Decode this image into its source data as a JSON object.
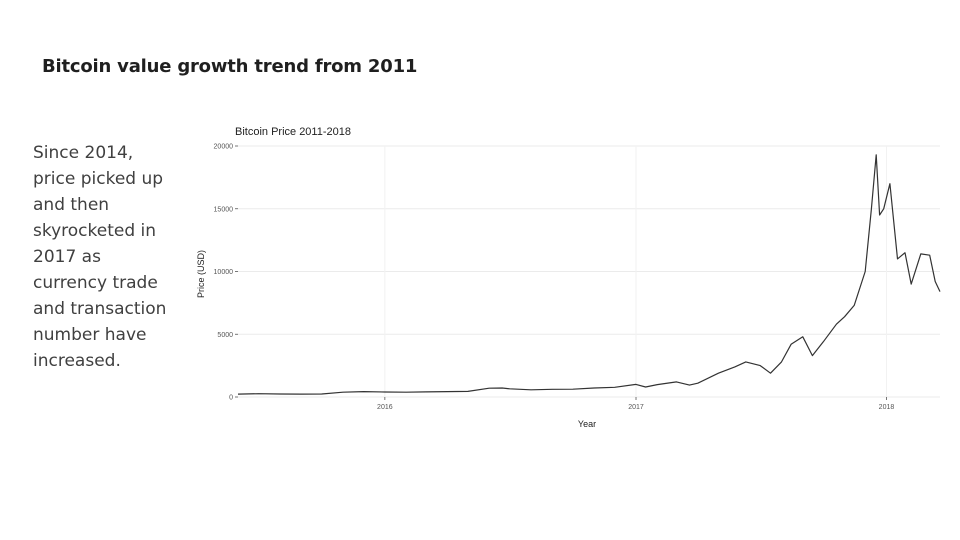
{
  "slide": {
    "title": "Bitcoin value growth trend from 2011",
    "body": "Since 2014, price picked up and then skyrocketed in 2017 as currency trade and transaction number have increased."
  },
  "chart_data": {
    "type": "line",
    "title": "Bitcoin Price 2011-2018",
    "xlabel": "Year",
    "ylabel": "Price (USD)",
    "x_ticks": [
      "2016",
      "2017",
      "2018"
    ],
    "y_ticks": [
      "0",
      "5000",
      "10000",
      "15000",
      "20000"
    ],
    "xlim": [
      "2015-06-01",
      "2018-03-20"
    ],
    "ylim": [
      0,
      20000
    ],
    "grid": true,
    "line_color": "#333333",
    "series": [
      {
        "x": [
          "2015-06-01",
          "2015-07-01",
          "2015-08-01",
          "2015-09-01",
          "2015-10-01",
          "2015-11-01",
          "2015-12-01",
          "2016-01-01",
          "2016-02-01",
          "2016-03-01",
          "2016-04-01",
          "2016-05-01",
          "2016-06-01",
          "2016-06-20",
          "2016-07-01",
          "2016-08-01",
          "2016-09-01",
          "2016-10-01",
          "2016-11-01",
          "2016-12-01",
          "2017-01-01",
          "2017-01-15",
          "2017-02-01",
          "2017-03-01",
          "2017-03-20",
          "2017-04-01",
          "2017-05-01",
          "2017-05-25",
          "2017-06-10",
          "2017-07-01",
          "2017-07-16",
          "2017-08-01",
          "2017-08-15",
          "2017-09-01",
          "2017-09-15",
          "2017-10-01",
          "2017-10-20",
          "2017-11-01",
          "2017-11-15",
          "2017-12-01",
          "2017-12-10",
          "2017-12-17",
          "2017-12-22",
          "2017-12-28",
          "2018-01-06",
          "2018-01-17",
          "2018-01-28",
          "2018-02-06",
          "2018-02-20",
          "2018-03-05",
          "2018-03-13",
          "2018-03-20"
        ],
        "y": [
          230,
          260,
          240,
          230,
          240,
          380,
          430,
          400,
          380,
          410,
          430,
          450,
          700,
          720,
          650,
          570,
          610,
          620,
          720,
          770,
          1000,
          800,
          990,
          1200,
          950,
          1100,
          1900,
          2400,
          2800,
          2500,
          1900,
          2800,
          4200,
          4800,
          3300,
          4400,
          5800,
          6400,
          7300,
          10000,
          15000,
          19300,
          14500,
          15000,
          17000,
          11000,
          11500,
          9000,
          11400,
          11300,
          9200,
          8400
        ]
      }
    ]
  }
}
